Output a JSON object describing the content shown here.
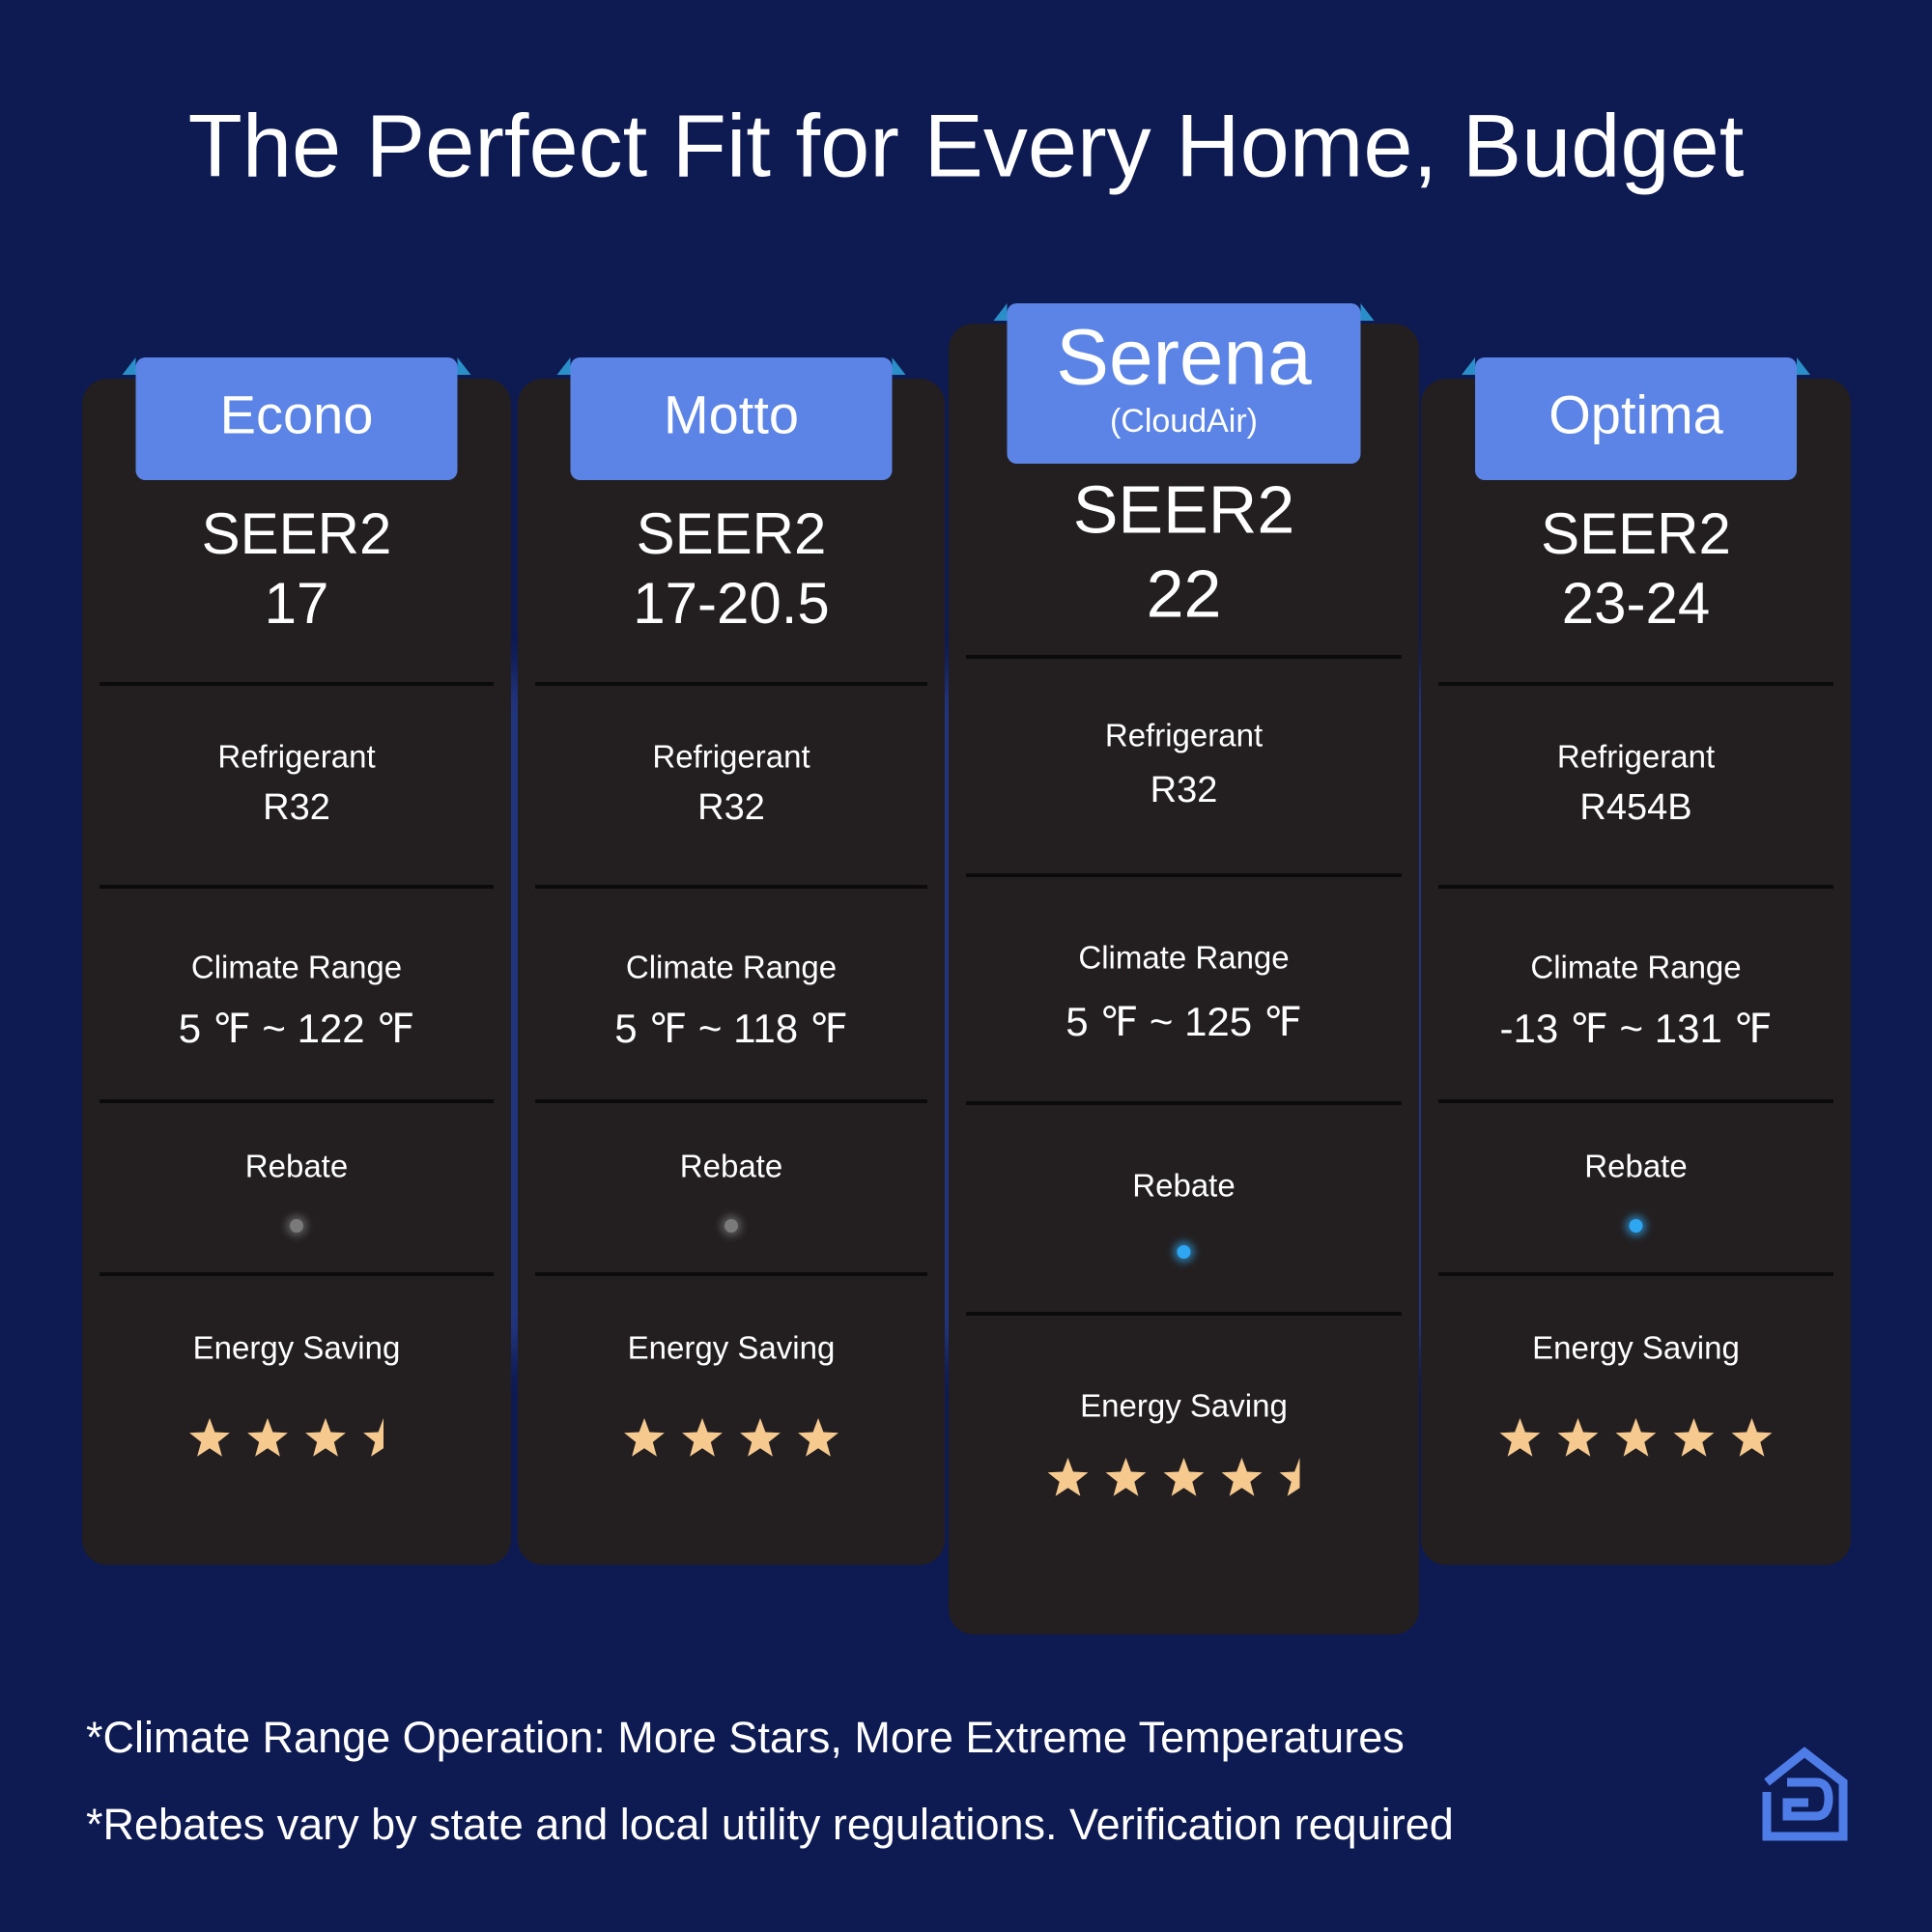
{
  "title": "The Perfect Fit for Every Home, Budget",
  "products": [
    {
      "name": "Econo",
      "seer_label": "SEER2",
      "seer": "17",
      "refrigerant_label": "Refrigerant",
      "refrigerant": "R32",
      "climate_label": "Climate Range",
      "climate": "5 ℉ ~ 122 ℉",
      "rebate_label": "Rebate",
      "rebate_dot_color": "#7a7a7a",
      "energy_label": "Energy Saving",
      "energy_stars": 3.5
    },
    {
      "name": "Motto",
      "seer_label": "SEER2",
      "seer": "17-20.5",
      "refrigerant_label": "Refrigerant",
      "refrigerant": "R32",
      "climate_label": "Climate Range",
      "climate": "5 ℉ ~ 118 ℉",
      "rebate_label": "Rebate",
      "rebate_dot_color": "#7a7a7a",
      "energy_label": "Energy Saving",
      "energy_stars": 4
    },
    {
      "name": "Serena",
      "subtitle": "(CloudAir)",
      "seer_label": "SEER2",
      "seer": "22",
      "refrigerant_label": "Refrigerant",
      "refrigerant": "R32",
      "climate_label": "Climate Range",
      "climate": "5 ℉ ~ 125 ℉",
      "rebate_label": "Rebate",
      "rebate_dot_color": "#2ea6f2",
      "energy_label": "Energy Saving",
      "energy_stars": 4.5
    },
    {
      "name": "Optima",
      "seer_label": "SEER2",
      "seer": "23-24",
      "refrigerant_label": "Refrigerant",
      "refrigerant": "R454B",
      "climate_label": "Climate Range",
      "climate": "-13 ℉ ~ 131 ℉",
      "rebate_label": "Rebate",
      "rebate_dot_color": "#2ea6f2",
      "energy_label": "Energy Saving",
      "energy_stars": 5
    }
  ],
  "footnotes": [
    "*Climate Range Operation: More Stars, More Extreme Temperatures",
    "*Rebates vary by state and local utility regulations. Verification required"
  ]
}
